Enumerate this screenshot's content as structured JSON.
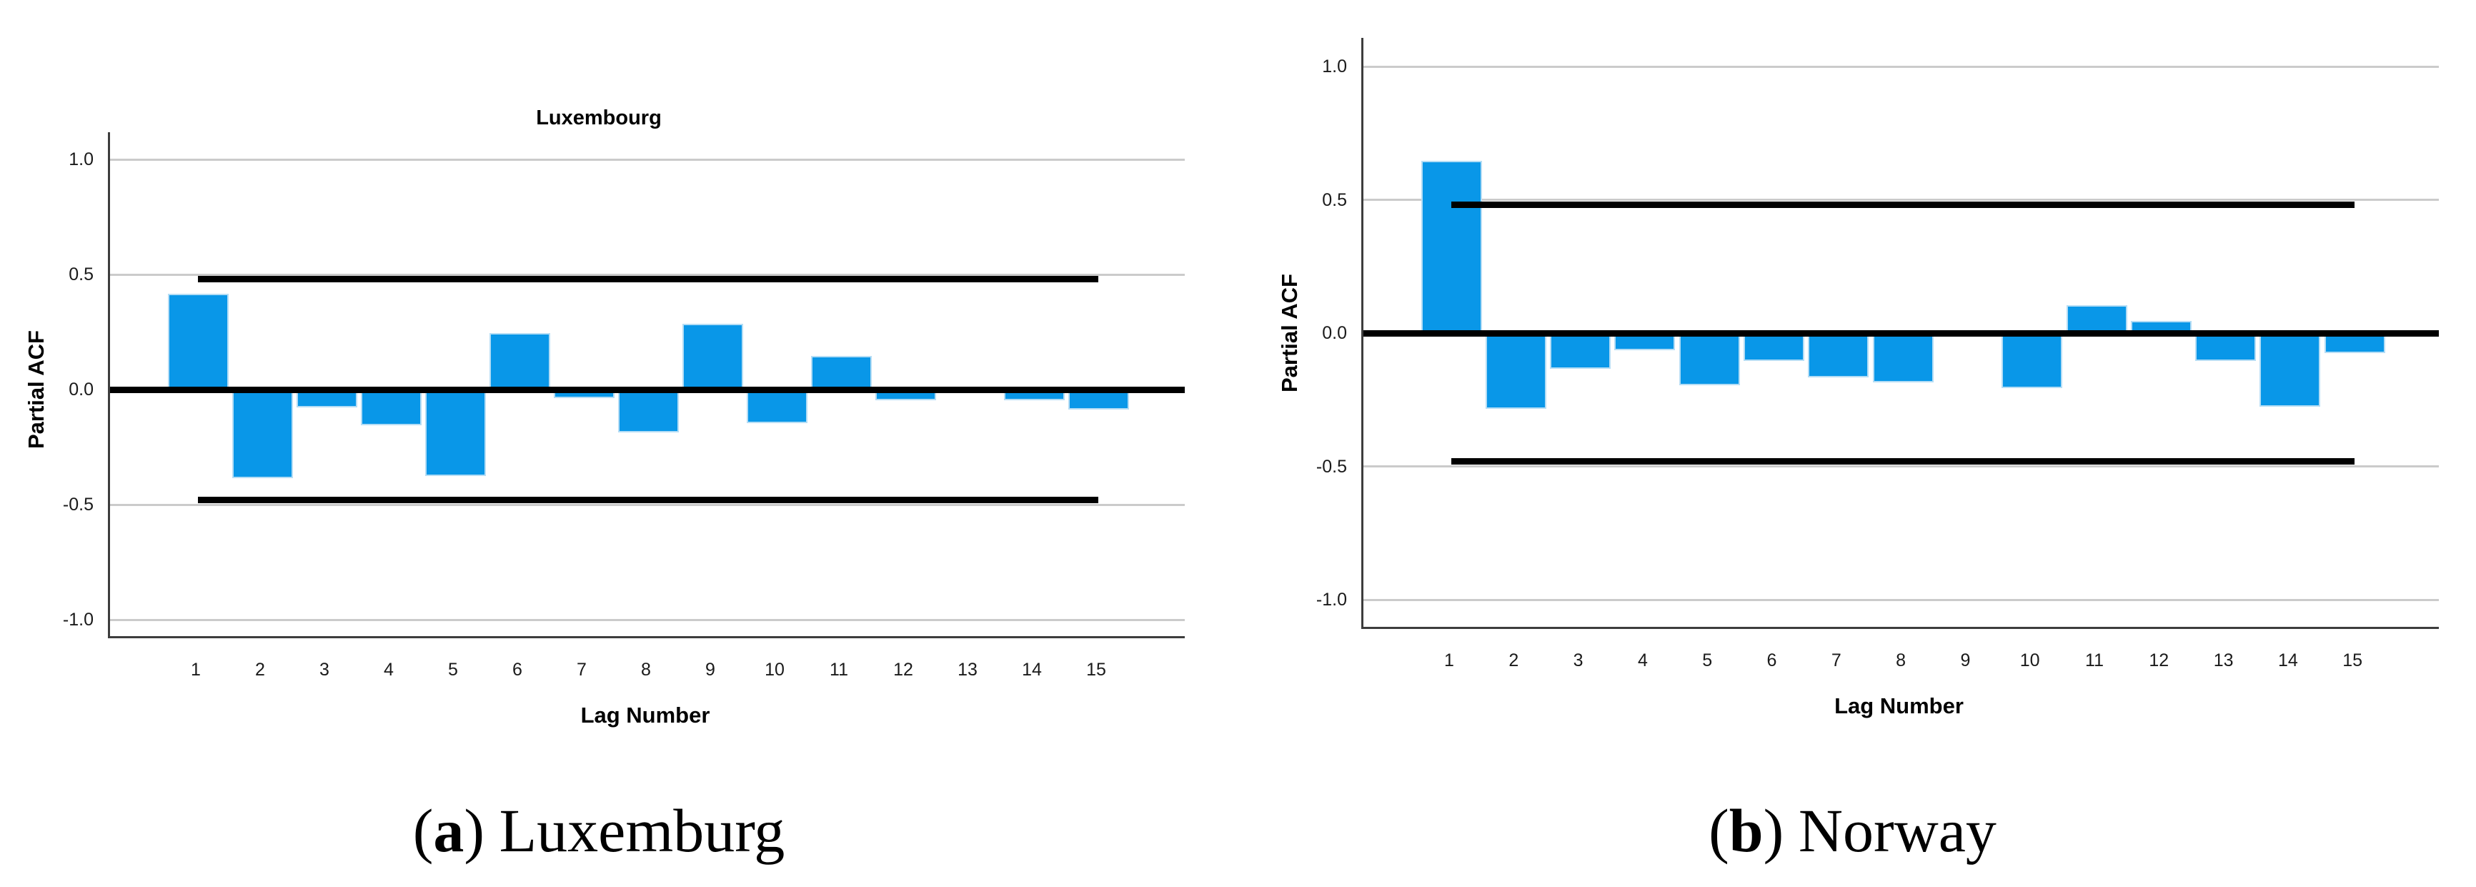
{
  "page": {
    "background": "#ffffff"
  },
  "chart_data": [
    {
      "type": "bar",
      "title": "Luxembourg",
      "xlabel": "Lag Number",
      "ylabel": "Partial ACF",
      "categories": [
        "1",
        "2",
        "3",
        "4",
        "5",
        "6",
        "7",
        "8",
        "9",
        "10",
        "11",
        "12",
        "13",
        "14",
        "15"
      ],
      "values": [
        0.41,
        -0.38,
        -0.07,
        -0.15,
        -0.37,
        0.24,
        -0.03,
        -0.18,
        0.28,
        -0.14,
        0.14,
        -0.04,
        0.0,
        -0.04,
        -0.08
      ],
      "ylim": [
        -1.1,
        1.1
      ],
      "ytick_values": [
        1.0,
        0.5,
        0.0,
        -0.5,
        -1.0
      ],
      "ytick_labels": [
        "1.0",
        "0.5",
        "0.0",
        "-0.5",
        "-1.0"
      ],
      "confidence_limit": 0.48,
      "confidence_band_span": {
        "from_lag": "1",
        "to_lag": "15"
      },
      "grid": true,
      "legend": null,
      "bar_color": "#0997e8",
      "line_color": "#000000",
      "caption": {
        "open_paren": "(",
        "letter": "a",
        "close_paren": ")",
        "label": "Luxemburg"
      }
    },
    {
      "type": "bar",
      "title": "Norway",
      "xlabel": "Lag Number",
      "ylabel": "Partial ACF",
      "categories": [
        "1",
        "2",
        "3",
        "4",
        "5",
        "6",
        "7",
        "8",
        "9",
        "10",
        "11",
        "12",
        "13",
        "14",
        "15"
      ],
      "values": [
        0.64,
        -0.28,
        -0.13,
        -0.06,
        -0.19,
        -0.1,
        -0.16,
        -0.18,
        0.0,
        -0.2,
        0.1,
        0.04,
        -0.1,
        -0.27,
        -0.07
      ],
      "ylim": [
        -1.1,
        1.1
      ],
      "ytick_values": [
        1.0,
        0.5,
        0.0,
        -0.5,
        -1.0
      ],
      "ytick_labels": [
        "1.0",
        "0.5",
        "0.0",
        "-0.5",
        "-1.0"
      ],
      "confidence_limit": 0.48,
      "confidence_band_span": {
        "from_lag": "1",
        "to_lag": "15"
      },
      "grid": true,
      "legend": null,
      "bar_color": "#0997e8",
      "line_color": "#000000",
      "caption": {
        "open_paren": "(",
        "letter": "b",
        "close_paren": ")",
        "label": "Norway"
      }
    }
  ]
}
